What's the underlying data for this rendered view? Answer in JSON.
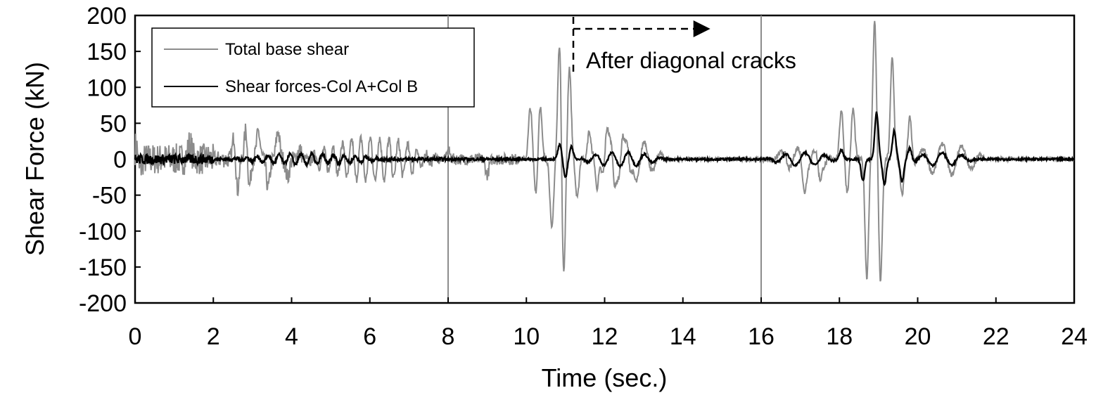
{
  "chart_data": {
    "type": "line",
    "xlabel": "Time (sec.)",
    "ylabel": "Shear Force (kN)",
    "xlim": [
      0,
      24
    ],
    "ylim": [
      -200,
      200
    ],
    "x_ticks": [
      "0",
      "2",
      "4",
      "6",
      "8",
      "10",
      "12",
      "14",
      "16",
      "18",
      "20",
      "22",
      "24"
    ],
    "y_ticks": [
      "200",
      "150",
      "100",
      "50",
      "0",
      "-50",
      "-100",
      "-150",
      "-200"
    ],
    "grid": false,
    "legend_position": "top-left",
    "segment_dividers": [
      8,
      16
    ],
    "annotation": {
      "text": "After diagonal cracks",
      "arrow_from_x": 11.2,
      "arrow_to_x": 14.7
    },
    "colors": {
      "total": "#8c8c8c",
      "columns": "#000000"
    },
    "series": [
      {
        "name": "Total base shear",
        "approx_peaks": [
          [
            0.05,
            30
          ],
          [
            0.1,
            -28
          ],
          [
            1.4,
            22
          ],
          [
            2.55,
            55
          ],
          [
            2.6,
            -65
          ],
          [
            2.85,
            65
          ],
          [
            2.9,
            -62
          ],
          [
            3.15,
            38
          ],
          [
            3.4,
            -40
          ],
          [
            3.65,
            40
          ],
          [
            3.9,
            -25
          ],
          [
            4.2,
            15
          ],
          [
            8.0,
            12
          ],
          [
            9.0,
            -22
          ],
          [
            10.1,
            72
          ],
          [
            10.25,
            -50
          ],
          [
            10.35,
            78
          ],
          [
            10.65,
            -98
          ],
          [
            10.85,
            172
          ],
          [
            10.95,
            -170
          ],
          [
            11.1,
            128
          ],
          [
            11.3,
            -55
          ],
          [
            11.6,
            50
          ],
          [
            11.8,
            -60
          ],
          [
            12.05,
            55
          ],
          [
            12.25,
            -55
          ],
          [
            12.45,
            52
          ],
          [
            12.65,
            -40
          ],
          [
            16.6,
            10
          ],
          [
            17.1,
            -35
          ],
          [
            17.5,
            -28
          ],
          [
            18.05,
            70
          ],
          [
            18.2,
            -45
          ],
          [
            18.35,
            70
          ],
          [
            18.7,
            -165
          ],
          [
            18.9,
            192
          ],
          [
            19.05,
            -170
          ],
          [
            19.35,
            142
          ],
          [
            19.6,
            -50
          ],
          [
            19.8,
            60
          ]
        ]
      },
      {
        "name": "Shear forces-Col A+Col B",
        "approx_peaks": [
          [
            10.85,
            20
          ],
          [
            11.0,
            -25
          ],
          [
            11.15,
            18
          ],
          [
            18.05,
            13
          ],
          [
            18.6,
            -30
          ],
          [
            18.95,
            65
          ],
          [
            19.15,
            -35
          ],
          [
            19.4,
            40
          ],
          [
            19.6,
            -32
          ],
          [
            19.8,
            16
          ]
        ]
      }
    ]
  }
}
